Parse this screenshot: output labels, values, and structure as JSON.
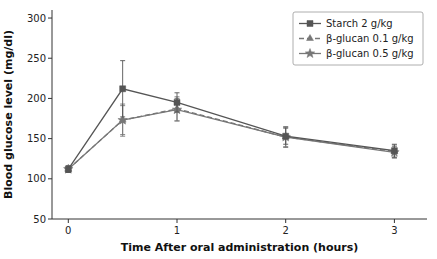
{
  "chart_data": {
    "type": "line",
    "x_label": "Time After oral administration  (hours)",
    "y_label": "Blood glucose level (mg/dl)",
    "x": [
      0,
      0.5,
      1,
      2,
      3
    ],
    "series": [
      {
        "name": "Starch 2 g/kg",
        "color": "#555555",
        "line_style": "solid",
        "marker": "square",
        "values": [
          112,
          212,
          195,
          153,
          135
        ],
        "errors": [
          4,
          35,
          12,
          10,
          8
        ]
      },
      {
        "name": "β-glucan 0.1 g/kg",
        "color": "#777777",
        "line_style": "dashed",
        "marker": "triangle",
        "values": [
          112,
          173,
          187,
          152,
          134
        ],
        "errors": [
          4,
          20,
          15,
          12,
          8
        ]
      },
      {
        "name": "β-glucan 0.5 g/kg",
        "color": "#777777",
        "line_style": "solid",
        "marker": "star",
        "values": [
          112,
          173,
          186,
          152,
          133
        ],
        "errors": [
          4,
          18,
          14,
          13,
          7
        ]
      }
    ],
    "xlim": [
      -0.15,
      3.3
    ],
    "ylim": [
      50,
      310
    ],
    "xticks": [
      0,
      1,
      2,
      3
    ],
    "yticks": [
      50,
      100,
      150,
      200,
      250,
      300
    ],
    "grid": false,
    "legend": "upper right"
  }
}
